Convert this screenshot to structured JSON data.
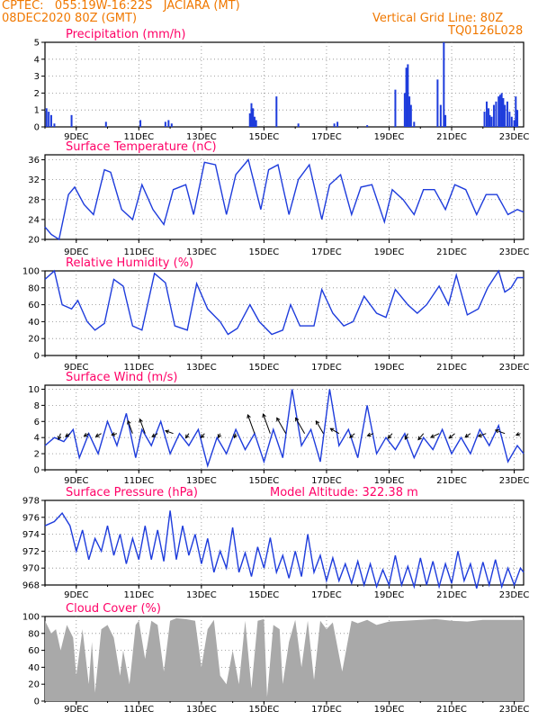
{
  "header": {
    "line1": "CPTEC:   055:19W-16:22S   JACIARA (MT)",
    "line2": "08DEC2020 80Z (GMT)",
    "grid_note": "Vertical Grid Line: 80Z",
    "code": "TQ0126L028"
  },
  "colors": {
    "header": "#f07800",
    "title": "#ff0066",
    "series": "#1e3cdc",
    "cloud": "#a9a9a9",
    "wind_arrow": "#000000"
  },
  "x_axis": {
    "ticks": [
      "9DEC",
      "11DEC",
      "13DEC",
      "15DEC",
      "17DEC",
      "19DEC",
      "21DEC",
      "23DEC"
    ],
    "tick_day_offsets": [
      1,
      3,
      5,
      7,
      9,
      11,
      13,
      15
    ],
    "range_days": [
      0,
      15.3
    ]
  },
  "chart_data": [
    {
      "type": "bar",
      "id": "precipitation",
      "title": "Precipitation (mm/h)",
      "ylim": [
        0,
        5
      ],
      "yticks": [
        "0",
        "1",
        "2",
        "3",
        "4",
        "5"
      ],
      "x_days": [
        0.05,
        0.12,
        0.2,
        0.3,
        0.85,
        1.95,
        3.05,
        3.85,
        3.95,
        4.05,
        6.55,
        6.6,
        6.65,
        6.7,
        6.75,
        7.4,
        8.1,
        9.25,
        9.35,
        10.3,
        11.2,
        11.5,
        11.55,
        11.6,
        11.65,
        11.7,
        11.8,
        12.55,
        12.65,
        12.75,
        12.8,
        14.05,
        14.12,
        14.18,
        14.22,
        14.28,
        14.35,
        14.42,
        14.5,
        14.55,
        14.6,
        14.65,
        14.7,
        14.78,
        14.85,
        14.92,
        15.0,
        15.05,
        15.1
      ],
      "values": [
        1.1,
        0.9,
        0.7,
        0.2,
        0.7,
        0.3,
        0.4,
        0.3,
        0.4,
        0.2,
        0.8,
        1.4,
        1.1,
        0.6,
        0.4,
        1.8,
        0.2,
        0.2,
        0.3,
        0.1,
        2.2,
        2.0,
        3.5,
        3.7,
        1.8,
        1.3,
        0.3,
        2.8,
        1.3,
        5.0,
        0.7,
        0.9,
        1.5,
        1.1,
        0.7,
        0.6,
        1.3,
        1.5,
        1.8,
        1.9,
        2.0,
        1.7,
        1.3,
        1.5,
        0.9,
        0.6,
        0.4,
        1.8,
        1.0
      ]
    },
    {
      "type": "line",
      "id": "temperature",
      "title": "Surface Temperature (nC)",
      "ylim": [
        20,
        37
      ],
      "yticks": [
        "20",
        "24",
        "28",
        "32",
        "36"
      ],
      "x_days": [
        0,
        0.2,
        0.45,
        0.75,
        0.95,
        1.25,
        1.55,
        1.9,
        2.1,
        2.45,
        2.8,
        3.1,
        3.45,
        3.8,
        4.1,
        4.5,
        4.75,
        5.1,
        5.45,
        5.8,
        6.1,
        6.5,
        6.9,
        7.15,
        7.45,
        7.8,
        8.1,
        8.45,
        8.85,
        9.1,
        9.45,
        9.8,
        10.1,
        10.45,
        10.85,
        11.1,
        11.45,
        11.8,
        12.1,
        12.45,
        12.8,
        13.1,
        13.45,
        13.8,
        14.1,
        14.45,
        14.8,
        15.1,
        15.3
      ],
      "values": [
        22.5,
        21,
        20,
        29,
        30.5,
        27,
        25,
        34,
        33.5,
        26,
        24,
        31,
        26,
        23,
        30,
        31,
        25,
        35.5,
        35,
        25,
        33,
        36,
        26,
        34,
        35,
        25,
        32,
        35,
        24,
        31,
        33,
        25,
        30.5,
        31,
        23.5,
        30,
        28,
        25,
        30,
        30,
        26,
        31,
        30,
        25,
        29,
        29,
        25,
        26,
        25.5
      ]
    },
    {
      "type": "line",
      "id": "humidity",
      "title": "Relative Humidity (%)",
      "ylim": [
        0,
        100
      ],
      "yticks": [
        "0",
        "20",
        "40",
        "60",
        "80",
        "100"
      ],
      "x_days": [
        0,
        0.3,
        0.55,
        0.85,
        1.05,
        1.35,
        1.6,
        1.9,
        2.2,
        2.5,
        2.8,
        3.1,
        3.5,
        3.85,
        4.15,
        4.55,
        4.85,
        5.2,
        5.6,
        5.85,
        6.15,
        6.55,
        6.85,
        7.25,
        7.6,
        7.85,
        8.15,
        8.6,
        8.85,
        9.2,
        9.55,
        9.85,
        10.2,
        10.6,
        10.9,
        11.2,
        11.6,
        11.9,
        12.2,
        12.6,
        12.9,
        13.15,
        13.5,
        13.85,
        14.15,
        14.5,
        14.7,
        14.9,
        15.1,
        15.3
      ],
      "values": [
        90,
        100,
        60,
        55,
        65,
        40,
        30,
        38,
        90,
        82,
        35,
        30,
        97,
        86,
        35,
        30,
        85,
        55,
        40,
        25,
        32,
        60,
        40,
        25,
        30,
        60,
        35,
        35,
        78,
        50,
        35,
        40,
        70,
        50,
        45,
        78,
        60,
        50,
        60,
        82,
        60,
        95,
        48,
        55,
        80,
        100,
        75,
        80,
        92,
        92
      ]
    },
    {
      "type": "line",
      "id": "wind",
      "title": "Surface Wind (m/s)",
      "ylim": [
        0,
        10.5
      ],
      "yticks": [
        "0",
        "2",
        "4",
        "6",
        "8",
        "10"
      ],
      "x_days": [
        0,
        0.3,
        0.6,
        0.9,
        1.1,
        1.4,
        1.7,
        2.0,
        2.3,
        2.6,
        2.9,
        3.1,
        3.4,
        3.7,
        4.0,
        4.3,
        4.6,
        4.9,
        5.2,
        5.5,
        5.8,
        6.1,
        6.4,
        6.7,
        7.0,
        7.3,
        7.6,
        7.9,
        8.2,
        8.5,
        8.8,
        9.1,
        9.4,
        9.7,
        10.0,
        10.3,
        10.6,
        10.9,
        11.2,
        11.5,
        11.8,
        12.1,
        12.4,
        12.7,
        13.0,
        13.3,
        13.6,
        13.9,
        14.2,
        14.5,
        14.8,
        15.1,
        15.3
      ],
      "values": [
        3,
        4,
        3.5,
        5,
        1.5,
        4.5,
        2,
        6,
        3,
        7,
        1.5,
        5,
        3,
        6,
        2,
        4.5,
        3,
        5,
        0.5,
        4,
        2,
        5,
        2.5,
        4.5,
        1,
        5,
        1.5,
        10,
        3,
        5,
        1,
        10,
        3,
        5,
        1.5,
        8,
        2,
        4,
        2.5,
        4.5,
        1.5,
        4,
        2.5,
        5,
        2,
        4,
        2,
        5,
        3,
        5.5,
        1,
        3,
        2
      ],
      "arrows": {
        "x_days": [
          0.5,
          0.8,
          1.4,
          1.8,
          2.3,
          2.8,
          3.2,
          3.6,
          4.1,
          4.6,
          5.1,
          5.6,
          6.1,
          6.7,
          7.2,
          7.7,
          8.3,
          8.9,
          9.4,
          9.9,
          10.5,
          11.1,
          11.6,
          12.1,
          12.6,
          13.1,
          13.6,
          14.1,
          14.7,
          15.2
        ],
        "angle_deg": [
          110,
          145,
          150,
          150,
          165,
          250,
          250,
          150,
          200,
          125,
          130,
          115,
          110,
          250,
          250,
          240,
          240,
          240,
          210,
          140,
          160,
          130,
          115,
          130,
          155,
          140,
          145,
          160,
          200,
          160
        ],
        "length": [
          0.7,
          0.6,
          0.6,
          0.7,
          0.6,
          1.5,
          1.7,
          0.7,
          0.9,
          0.6,
          0.6,
          0.5,
          0.5,
          2.2,
          2.3,
          2.0,
          2.0,
          1.6,
          1.1,
          0.7,
          0.7,
          0.7,
          0.7,
          0.9,
          1.0,
          0.8,
          0.7,
          0.9,
          1.1,
          0.5
        ]
      }
    },
    {
      "type": "line",
      "id": "pressure",
      "title": "Surface Pressure (hPa)",
      "annotation": "Model Altitude: 322.38 m",
      "ylim": [
        968,
        978
      ],
      "yticks": [
        "968",
        "970",
        "972",
        "974",
        "976",
        "978"
      ],
      "x_days": [
        0,
        0.3,
        0.55,
        0.8,
        1.0,
        1.2,
        1.4,
        1.6,
        1.8,
        2.0,
        2.2,
        2.4,
        2.6,
        2.8,
        3.0,
        3.2,
        3.4,
        3.6,
        3.8,
        4.0,
        4.2,
        4.4,
        4.6,
        4.8,
        5.0,
        5.2,
        5.4,
        5.6,
        5.8,
        6.0,
        6.2,
        6.4,
        6.6,
        6.8,
        7.0,
        7.2,
        7.4,
        7.6,
        7.8,
        8.0,
        8.2,
        8.4,
        8.6,
        8.8,
        9.0,
        9.2,
        9.4,
        9.6,
        9.8,
        10.0,
        10.2,
        10.4,
        10.6,
        10.8,
        11.0,
        11.2,
        11.4,
        11.6,
        11.8,
        12.0,
        12.2,
        12.4,
        12.6,
        12.8,
        13.0,
        13.2,
        13.4,
        13.6,
        13.8,
        14.0,
        14.2,
        14.4,
        14.6,
        14.8,
        15.0,
        15.2,
        15.3
      ],
      "values": [
        975,
        975.5,
        976.5,
        975,
        972,
        974.5,
        971,
        973.5,
        972,
        975,
        971.5,
        974,
        970.5,
        973.5,
        971,
        975,
        971,
        974.5,
        970.8,
        976.8,
        971,
        975,
        971.5,
        974,
        970.5,
        973.5,
        969.5,
        972,
        970,
        974.8,
        969.5,
        971.8,
        969,
        972.5,
        970,
        973.6,
        969.5,
        971.5,
        968.8,
        972,
        969,
        974,
        969.5,
        971.5,
        968.5,
        971.2,
        968.5,
        970.5,
        968.2,
        970.8,
        968,
        970.5,
        967.8,
        969.8,
        968,
        971.5,
        968,
        970.2,
        967.8,
        971.2,
        968,
        970.8,
        967.8,
        970.5,
        968.2,
        972,
        968.5,
        970.5,
        967.6,
        970.7,
        968,
        971,
        967.8,
        970,
        968,
        970,
        969.5
      ]
    },
    {
      "type": "area",
      "id": "cloud",
      "title": "Cloud Cover (%)",
      "ylim": [
        0,
        100
      ],
      "yticks": [
        "0",
        "20",
        "40",
        "60",
        "80",
        "100"
      ],
      "x_days": [
        0,
        0.2,
        0.35,
        0.5,
        0.7,
        0.9,
        1.0,
        1.2,
        1.4,
        1.5,
        1.6,
        1.8,
        2.0,
        2.2,
        2.4,
        2.5,
        2.7,
        2.9,
        3.0,
        3.2,
        3.4,
        3.6,
        3.8,
        4.0,
        4.2,
        4.5,
        4.8,
        5.0,
        5.2,
        5.4,
        5.6,
        5.8,
        6.0,
        6.2,
        6.4,
        6.6,
        6.8,
        7.0,
        7.1,
        7.3,
        7.5,
        7.6,
        7.8,
        8.0,
        8.2,
        8.4,
        8.6,
        8.8,
        9.0,
        9.2,
        9.5,
        9.8,
        10.0,
        10.3,
        10.6,
        11.0,
        11.5,
        12.0,
        12.5,
        13.0,
        13.5,
        14.0,
        14.5,
        15.0,
        15.3
      ],
      "values": [
        95,
        80,
        85,
        60,
        90,
        75,
        30,
        85,
        20,
        70,
        10,
        85,
        90,
        75,
        30,
        60,
        20,
        90,
        95,
        50,
        95,
        90,
        35,
        95,
        98,
        97,
        95,
        40,
        85,
        96,
        30,
        20,
        60,
        20,
        95,
        15,
        95,
        97,
        5,
        90,
        85,
        20,
        70,
        96,
        40,
        95,
        25,
        95,
        85,
        93,
        35,
        95,
        92,
        96,
        90,
        94,
        95,
        96,
        97,
        95,
        94,
        96,
        96,
        96,
        96
      ]
    }
  ]
}
